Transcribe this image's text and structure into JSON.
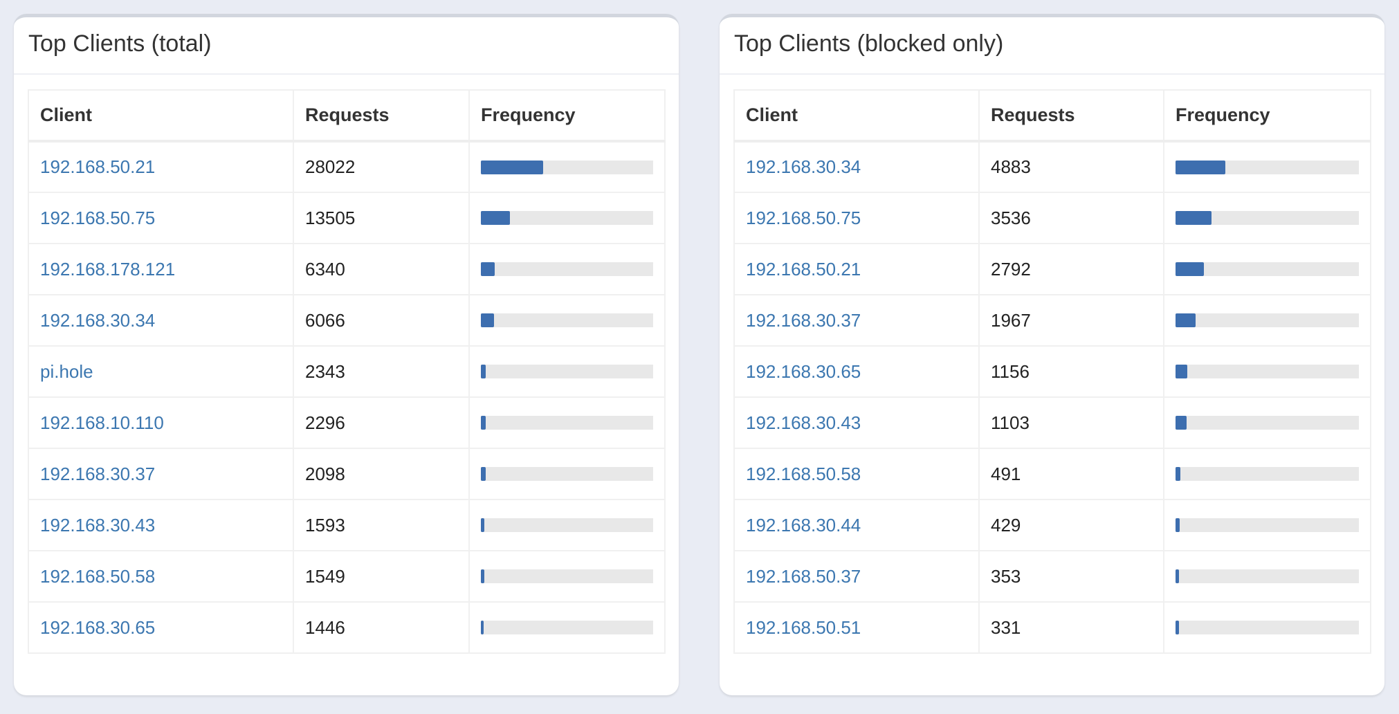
{
  "colors": {
    "link": "#3c77b0",
    "bar_fill": "#3d6eaf",
    "bar_track": "#e8e8e8",
    "page_bg": "#e9ecf4"
  },
  "panels": [
    {
      "title": "Top Clients (total)",
      "columns": [
        "Client",
        "Requests",
        "Frequency"
      ],
      "rows": [
        {
          "client": "192.168.50.21",
          "requests": "28022",
          "frequency": 0.36
        },
        {
          "client": "192.168.50.75",
          "requests": "13505",
          "frequency": 0.17
        },
        {
          "client": "192.168.178.121",
          "requests": "6340",
          "frequency": 0.08
        },
        {
          "client": "192.168.30.34",
          "requests": "6066",
          "frequency": 0.075
        },
        {
          "client": "pi.hole",
          "requests": "2343",
          "frequency": 0.03
        },
        {
          "client": "192.168.10.110",
          "requests": "2296",
          "frequency": 0.03
        },
        {
          "client": "192.168.30.37",
          "requests": "2098",
          "frequency": 0.027
        },
        {
          "client": "192.168.30.43",
          "requests": "1593",
          "frequency": 0.02
        },
        {
          "client": "192.168.50.58",
          "requests": "1549",
          "frequency": 0.02
        },
        {
          "client": "192.168.30.65",
          "requests": "1446",
          "frequency": 0.018
        }
      ]
    },
    {
      "title": "Top Clients (blocked only)",
      "columns": [
        "Client",
        "Requests",
        "Frequency"
      ],
      "rows": [
        {
          "client": "192.168.30.34",
          "requests": "4883",
          "frequency": 0.27
        },
        {
          "client": "192.168.50.75",
          "requests": "3536",
          "frequency": 0.195
        },
        {
          "client": "192.168.50.21",
          "requests": "2792",
          "frequency": 0.155
        },
        {
          "client": "192.168.30.37",
          "requests": "1967",
          "frequency": 0.108
        },
        {
          "client": "192.168.30.65",
          "requests": "1156",
          "frequency": 0.064
        },
        {
          "client": "192.168.30.43",
          "requests": "1103",
          "frequency": 0.061
        },
        {
          "client": "192.168.50.58",
          "requests": "491",
          "frequency": 0.027
        },
        {
          "client": "192.168.30.44",
          "requests": "429",
          "frequency": 0.024
        },
        {
          "client": "192.168.50.37",
          "requests": "353",
          "frequency": 0.02
        },
        {
          "client": "192.168.50.51",
          "requests": "331",
          "frequency": 0.018
        }
      ]
    }
  ]
}
